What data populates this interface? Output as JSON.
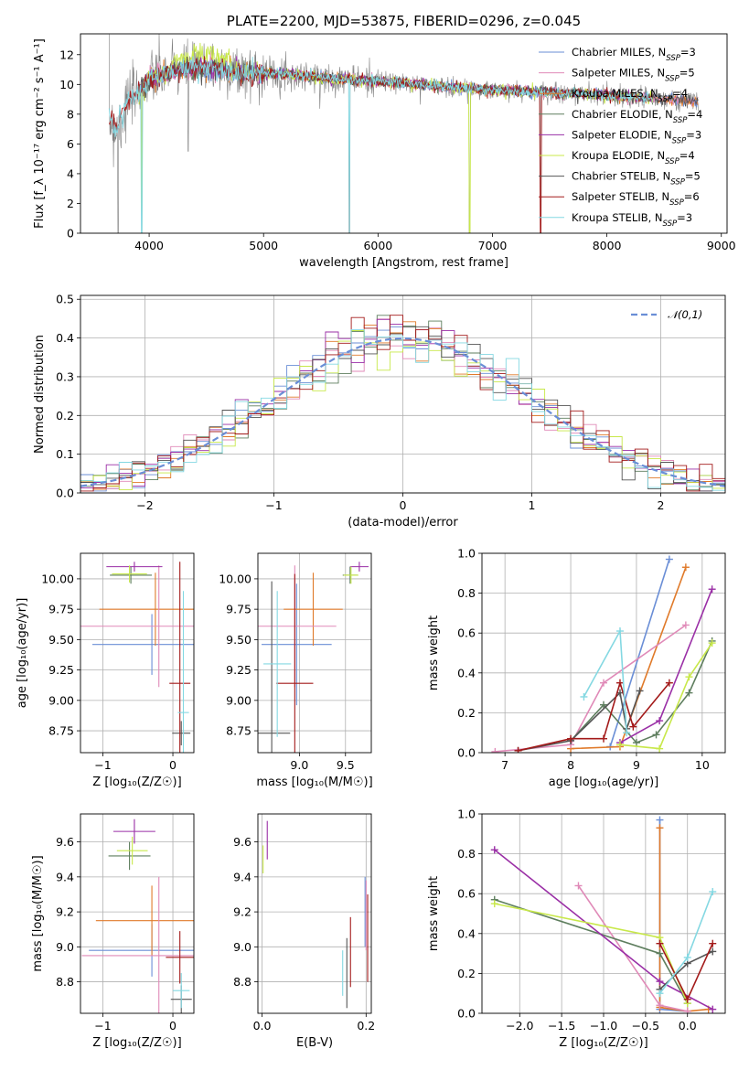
{
  "colors": {
    "c1": "#6a8ed6",
    "c2": "#e07a2a",
    "c3": "#e08ab8",
    "c4": "#5e7e5e",
    "c5": "#9a2fa6",
    "c6": "#c8e84a",
    "c7": "#555555",
    "c8": "#a31a1a",
    "c9": "#84d8e2",
    "grid": "#b0b0b0",
    "raw": "#808080"
  },
  "chart_data": [
    {
      "id": "spectrum",
      "type": "line",
      "title": "PLATE=2200, MJD=53875, FIBERID=0296, z=0.045",
      "xlabel": "wavelength [Angstrom, rest frame]",
      "ylabel": "Flux [f_λ 10⁻¹⁷ erg cm⁻² s⁻¹ A⁻¹]",
      "xlim": [
        3400,
        9050
      ],
      "ylim": [
        0,
        13.4
      ],
      "xticks": [
        4000,
        5000,
        6000,
        7000,
        8000,
        9000
      ],
      "yticks": [
        0,
        2,
        4,
        6,
        8,
        10,
        12
      ],
      "grid": false,
      "legend": "upper-right",
      "legend_entries": [
        {
          "label": "Chabrier MILES, N",
          "sub": "SSP",
          "suffix": "=3",
          "color": "c1"
        },
        {
          "label": "Salpeter MILES, N",
          "sub": "SSP",
          "suffix": "=5",
          "color": "c3"
        },
        {
          "label": "Kroupa MILES, N",
          "sub": "SSP",
          "suffix": "=4",
          "color": "c2"
        },
        {
          "label": "Chabrier ELODIE, N",
          "sub": "SSP",
          "suffix": "=4",
          "color": "c4"
        },
        {
          "label": "Salpeter ELODIE, N",
          "sub": "SSP",
          "suffix": "=3",
          "color": "c5"
        },
        {
          "label": "Kroupa ELODIE, N",
          "sub": "SSP",
          "suffix": "=4",
          "color": "c6"
        },
        {
          "label": "Chabrier STELIB, N",
          "sub": "SSP",
          "suffix": "=5",
          "color": "c7"
        },
        {
          "label": "Salpeter STELIB, N",
          "sub": "SSP",
          "suffix": "=6",
          "color": "c8"
        },
        {
          "label": "Kroupa STELIB, N",
          "sub": "SSP",
          "suffix": "=3",
          "color": "c9"
        }
      ],
      "continuum": [
        [
          3650,
          7.8
        ],
        [
          3720,
          7.0
        ],
        [
          3800,
          8.8
        ],
        [
          3900,
          9.4
        ],
        [
          4000,
          10.3
        ],
        [
          4200,
          10.9
        ],
        [
          4500,
          11.2
        ],
        [
          4800,
          10.8
        ],
        [
          5200,
          10.7
        ],
        [
          5600,
          10.4
        ],
        [
          6000,
          10.2
        ],
        [
          6500,
          9.9
        ],
        [
          7000,
          9.6
        ],
        [
          7400,
          9.5
        ],
        [
          7600,
          9.4
        ],
        [
          8000,
          9.3
        ],
        [
          8300,
          9.1
        ],
        [
          8700,
          8.9
        ]
      ],
      "dips": [
        [
          3730,
          0
        ],
        [
          3935,
          0
        ],
        [
          4340,
          5.5
        ],
        [
          5750,
          0
        ],
        [
          6800,
          0
        ],
        [
          7420,
          0
        ]
      ]
    },
    {
      "id": "residuals",
      "type": "step",
      "xlabel": "(data-model)/error",
      "ylabel": "Normed distribution",
      "xlim": [
        -2.5,
        2.5
      ],
      "ylim": [
        0,
        0.51
      ],
      "xticks": [
        -2,
        -1,
        0,
        1,
        2
      ],
      "xtick_labels": [
        "−2",
        "−1",
        "0",
        "1",
        "2"
      ],
      "yticks": [
        0,
        0.1,
        0.2,
        0.3,
        0.4,
        0.5
      ],
      "ytick_labels": [
        "0.0",
        "0.1",
        "0.2",
        "0.3",
        "0.4",
        "0.5"
      ],
      "grid": true,
      "legend": "upper-right",
      "reference_label": "𝒩(0,1)",
      "bin_width": 0.1
    },
    {
      "id": "age-vs-Z",
      "type": "errorbar",
      "xlabel": "Z [log₁₀(Z/Z☉)]",
      "ylabel": "age  [log₁₀(age/yr)]",
      "xlim": [
        -1.32,
        0.3
      ],
      "ylim": [
        8.57,
        10.21
      ],
      "xticks": [
        -1,
        0
      ],
      "xtick_labels": [
        "−1",
        "0"
      ],
      "yticks": [
        8.75,
        9.0,
        9.25,
        9.5,
        9.75,
        10.0
      ],
      "ytick_labels": [
        "8.75",
        "9.00",
        "9.25",
        "9.50",
        "9.75",
        "10.00"
      ],
      "points": [
        {
          "c": "c1",
          "x": -0.3,
          "xe": 0.85,
          "y": 9.46,
          "ye": 0.25
        },
        {
          "c": "c2",
          "x": -0.25,
          "xe": 0.8,
          "y": 9.75,
          "ye": 0.3
        },
        {
          "c": "c3",
          "x": -0.2,
          "xe": 1.3,
          "y": 9.61,
          "ye": 0.5
        },
        {
          "c": "c4",
          "x": -0.6,
          "xe": 0.3,
          "y": 10.03,
          "ye": 0.07
        },
        {
          "c": "c5",
          "x": -0.55,
          "xe": 0.4,
          "y": 10.1,
          "ye": 0.04
        },
        {
          "c": "c6",
          "x": -0.62,
          "xe": 0.25,
          "y": 10.04,
          "ye": 0.07
        },
        {
          "c": "c7",
          "x": 0.12,
          "xe": 0.13,
          "y": 8.73,
          "ye": 0.1
        },
        {
          "c": "c8",
          "x": 0.1,
          "xe": 0.15,
          "y": 9.14,
          "ye": 1.0
        },
        {
          "c": "c9",
          "x": 0.15,
          "xe": 0.08,
          "y": 8.9,
          "ye": 1.0
        }
      ]
    },
    {
      "id": "age-vs-mass",
      "type": "errorbar",
      "xlabel": "mass [log₁₀(M/M☉)]",
      "ylabel": "",
      "xlim": [
        8.55,
        9.78
      ],
      "ylim": [
        8.57,
        10.21
      ],
      "xticks": [
        9.0,
        9.5
      ],
      "xtick_labels": [
        "9.0",
        "9.5"
      ],
      "yticks": [
        8.75,
        9.0,
        9.25,
        9.5,
        9.75,
        10.0
      ],
      "ytick_labels": [
        "8.75",
        "9.00",
        "9.25",
        "9.50",
        "9.75",
        "10.00"
      ],
      "points": [
        {
          "c": "c1",
          "x": 8.97,
          "xe": 0.38,
          "y": 9.46,
          "ye": 0.5
        },
        {
          "c": "c2",
          "x": 9.15,
          "xe": 0.32,
          "y": 9.75,
          "ye": 0.3
        },
        {
          "c": "c3",
          "x": 8.95,
          "xe": 0.45,
          "y": 9.61,
          "ye": 0.5
        },
        {
          "c": "c4",
          "x": 9.55,
          "xe": 0.08,
          "y": 10.03,
          "ye": 0.07
        },
        {
          "c": "c5",
          "x": 9.65,
          "xe": 0.1,
          "y": 10.1,
          "ye": 0.04
        },
        {
          "c": "c6",
          "x": 9.56,
          "xe": 0.08,
          "y": 10.03,
          "ye": 0.07
        },
        {
          "c": "c7",
          "x": 8.7,
          "xe": 0.2,
          "y": 8.73,
          "ye": 1.25
        },
        {
          "c": "c8",
          "x": 8.95,
          "xe": 0.2,
          "y": 9.14,
          "ye": 0.9
        },
        {
          "c": "c9",
          "x": 8.76,
          "xe": 0.15,
          "y": 9.3,
          "ye": 0.6
        }
      ]
    },
    {
      "id": "weight-vs-age",
      "type": "line",
      "xlabel": "age  [log₁₀(age/yr)]",
      "ylabel": "mass weight",
      "xlim": [
        6.65,
        10.35
      ],
      "ylim": [
        0,
        1.0
      ],
      "xticks": [
        7,
        8,
        9,
        10
      ],
      "xtick_labels": [
        "7",
        "8",
        "9",
        "10"
      ],
      "yticks": [
        0,
        0.2,
        0.4,
        0.6,
        0.8,
        1.0
      ],
      "ytick_labels": [
        "0.0",
        "0.2",
        "0.4",
        "0.6",
        "0.8",
        "1.0"
      ],
      "series": [
        {
          "c": "c1",
          "x": [
            8.6,
            9.5
          ],
          "y": [
            0.03,
            0.97
          ]
        },
        {
          "c": "c2",
          "x": [
            8.0,
            8.75,
            9.75
          ],
          "y": [
            0.02,
            0.03,
            0.93
          ]
        },
        {
          "c": "c3",
          "x": [
            6.85,
            8.0,
            8.5,
            9.75
          ],
          "y": [
            0.005,
            0.04,
            0.35,
            0.64
          ]
        },
        {
          "c": "c4",
          "x": [
            8.0,
            8.5,
            9.0,
            9.3,
            9.8,
            10.15
          ],
          "y": [
            0.06,
            0.24,
            0.05,
            0.09,
            0.3,
            0.56
          ]
        },
        {
          "c": "c5",
          "x": [
            8.75,
            9.35,
            10.15
          ],
          "y": [
            0.05,
            0.16,
            0.82
          ]
        },
        {
          "c": "c6",
          "x": [
            8.75,
            9.35,
            9.8,
            10.15
          ],
          "y": [
            0.04,
            0.02,
            0.38,
            0.55
          ]
        },
        {
          "c": "c7",
          "x": [
            7.2,
            8.0,
            8.75,
            8.85,
            9.05
          ],
          "y": [
            0.01,
            0.06,
            0.3,
            0.12,
            0.31
          ]
        },
        {
          "c": "c8",
          "x": [
            7.2,
            8.0,
            8.5,
            8.75,
            8.95,
            9.5
          ],
          "y": [
            0.01,
            0.07,
            0.07,
            0.35,
            0.13,
            0.35
          ]
        },
        {
          "c": "c9",
          "x": [
            8.2,
            8.75,
            8.85
          ],
          "y": [
            0.28,
            0.61,
            0.1
          ]
        }
      ]
    },
    {
      "id": "mass-vs-Z",
      "type": "errorbar",
      "xlabel": "Z [log₁₀(Z/Z☉)]",
      "ylabel": "mass [log₁₀(M/M☉)]",
      "xlim": [
        -1.32,
        0.3
      ],
      "ylim": [
        8.62,
        9.76
      ],
      "xticks": [
        -1,
        0
      ],
      "xtick_labels": [
        "−1",
        "0"
      ],
      "yticks": [
        8.8,
        9.0,
        9.2,
        9.4,
        9.6
      ],
      "ytick_labels": [
        "8.8",
        "9.0",
        "9.2",
        "9.4",
        "9.6"
      ],
      "points": [
        {
          "c": "c1",
          "x": -0.3,
          "xe": 0.9,
          "y": 8.98,
          "ye": 0.15
        },
        {
          "c": "c2",
          "x": -0.3,
          "xe": 0.8,
          "y": 9.15,
          "ye": 0.2
        },
        {
          "c": "c3",
          "x": -0.2,
          "xe": 1.1,
          "y": 8.95,
          "ye": 0.45
        },
        {
          "c": "c4",
          "x": -0.62,
          "xe": 0.3,
          "y": 9.52,
          "ye": 0.08
        },
        {
          "c": "c5",
          "x": -0.55,
          "xe": 0.3,
          "y": 9.66,
          "ye": 0.07
        },
        {
          "c": "c6",
          "x": -0.58,
          "xe": 0.22,
          "y": 9.55,
          "ye": 0.08
        },
        {
          "c": "c7",
          "x": 0.12,
          "xe": 0.15,
          "y": 8.7,
          "ye": 0.08
        },
        {
          "c": "c8",
          "x": 0.1,
          "xe": 0.2,
          "y": 8.94,
          "ye": 0.15
        },
        {
          "c": "c9",
          "x": 0.12,
          "xe": 0.12,
          "y": 8.75,
          "ye": 0.1
        }
      ]
    },
    {
      "id": "mass-vs-EBV",
      "type": "errorbar",
      "xlabel": "E(B-V)",
      "ylabel": "",
      "xlim": [
        -0.008,
        0.21
      ],
      "ylim": [
        8.62,
        9.76
      ],
      "xticks": [
        0.0,
        0.2
      ],
      "xtick_labels": [
        "0.0",
        "0.2"
      ],
      "yticks": [
        8.8,
        9.0,
        9.2,
        9.4,
        9.6
      ],
      "ytick_labels": [
        "8.8",
        "9.0",
        "9.2",
        "9.4",
        "9.6"
      ],
      "points": [
        {
          "c": "c6",
          "x": 0.002,
          "xe": 0.0,
          "y": 9.5,
          "ye": 0.08
        },
        {
          "c": "c5",
          "x": 0.01,
          "xe": 0.0,
          "y": 9.61,
          "ye": 0.11
        },
        {
          "c": "c9",
          "x": 0.155,
          "xe": 0.0,
          "y": 8.85,
          "ye": 0.13
        },
        {
          "c": "c7",
          "x": 0.163,
          "xe": 0.0,
          "y": 8.85,
          "ye": 0.2
        },
        {
          "c": "c8",
          "x": 0.17,
          "xe": 0.0,
          "y": 8.97,
          "ye": 0.2
        },
        {
          "c": "c1",
          "x": 0.198,
          "xe": 0.0,
          "y": 9.2,
          "ye": 0.2
        },
        {
          "c": "c3",
          "x": 0.2,
          "xe": 0.0,
          "y": 9.18,
          "ye": 0.2
        },
        {
          "c": "c8",
          "x": 0.203,
          "xe": 0.0,
          "y": 9.05,
          "ye": 0.25
        }
      ]
    },
    {
      "id": "weight-vs-Z",
      "type": "line",
      "xlabel": "Z [log₁₀(Z/Z☉)]",
      "ylabel": "mass weight",
      "xlim": [
        -2.45,
        0.45
      ],
      "ylim": [
        0,
        1.0
      ],
      "xticks": [
        -2.0,
        -1.5,
        -1.0,
        -0.5,
        0.0
      ],
      "xtick_labels": [
        "−2.0",
        "−1.5",
        "−1.0",
        "−0.5",
        "0.0"
      ],
      "yticks": [
        0,
        0.2,
        0.4,
        0.6,
        0.8,
        1.0
      ],
      "ytick_labels": [
        "0.0",
        "0.2",
        "0.4",
        "0.6",
        "0.8",
        "1.0"
      ],
      "series": [
        {
          "c": "c1",
          "x": [
            -0.33,
            -0.33,
            0.0
          ],
          "y": [
            0.97,
            0.02,
            0.01
          ]
        },
        {
          "c": "c2",
          "x": [
            -0.33,
            -0.33,
            0.0,
            0.25
          ],
          "y": [
            0.93,
            0.03,
            0.01,
            0.02
          ]
        },
        {
          "c": "c3",
          "x": [
            -1.3,
            -0.33,
            0.0
          ],
          "y": [
            0.64,
            0.04,
            0.01
          ]
        },
        {
          "c": "c4",
          "x": [
            -2.3,
            -0.33,
            0.0
          ],
          "y": [
            0.57,
            0.3,
            0.05
          ]
        },
        {
          "c": "c5",
          "x": [
            -2.3,
            -0.33,
            0.3
          ],
          "y": [
            0.82,
            0.16,
            0.02
          ]
        },
        {
          "c": "c6",
          "x": [
            -2.3,
            -0.33,
            0.0
          ],
          "y": [
            0.55,
            0.38,
            0.05
          ]
        },
        {
          "c": "c7",
          "x": [
            -0.33,
            0.0,
            0.3
          ],
          "y": [
            0.12,
            0.25,
            0.31
          ]
        },
        {
          "c": "c8",
          "x": [
            -0.33,
            0.0,
            0.3
          ],
          "y": [
            0.35,
            0.07,
            0.35
          ]
        },
        {
          "c": "c9",
          "x": [
            -0.33,
            0.0,
            0.3
          ],
          "y": [
            0.1,
            0.28,
            0.61
          ]
        }
      ]
    }
  ]
}
